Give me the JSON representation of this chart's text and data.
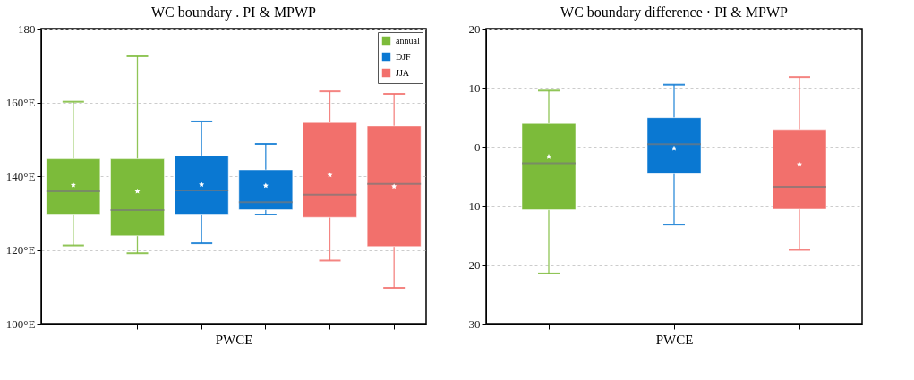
{
  "chart_data": [
    {
      "type": "box",
      "title": "WC boundary . PI & MPWP",
      "xlabel": "PWCE",
      "categories": [
        null,
        null,
        null,
        null,
        null,
        null
      ],
      "ylim": [
        100,
        180
      ],
      "yticks": [
        {
          "value": 100,
          "label": "100°E"
        },
        {
          "value": 120,
          "label": "120°E"
        },
        {
          "value": 140,
          "label": "140°E"
        },
        {
          "value": 160,
          "label": "160°E"
        },
        180
      ],
      "grid": "y",
      "legend": "top right",
      "tick_labels": "y",
      "marker": "star",
      "series": [
        {
          "name": "annual",
          "color": "#7cbb3a",
          "boxes": [
            {
              "low": 121.2,
              "q1": 129.7,
              "median": 135.9,
              "q3": 144.7,
              "high": 160.2,
              "mean": 137.6
            },
            {
              "low": 119.1,
              "q1": 123.8,
              "median": 130.8,
              "q3": 144.7,
              "high": 172.5,
              "mean": 135.9
            },
            null,
            null,
            null,
            null
          ]
        },
        {
          "name": "DJF",
          "color": "#0a78d2",
          "boxes": [
            null,
            null,
            {
              "low": 121.8,
              "q1": 129.7,
              "median": 136.1,
              "q3": 145.5,
              "high": 154.8,
              "mean": 137.7
            },
            {
              "low": 129.6,
              "q1": 130.9,
              "median": 132.9,
              "q3": 141.7,
              "high": 148.7,
              "mean": 137.4
            },
            null,
            null
          ]
        },
        {
          "name": "JJA",
          "color": "#f2706c",
          "boxes": [
            null,
            null,
            null,
            null,
            {
              "low": 117.1,
              "q1": 128.8,
              "median": 135.0,
              "q3": 154.5,
              "high": 163.0,
              "mean": 140.3
            },
            {
              "low": 109.7,
              "q1": 120.9,
              "median": 137.9,
              "q3": 153.6,
              "high": 162.3,
              "mean": 137.2
            }
          ]
        }
      ]
    },
    {
      "type": "box",
      "title": "WC boundary difference · PI & MPWP",
      "xlabel": "PWCE",
      "categories": [
        null,
        null,
        null
      ],
      "ylim": [
        -30,
        20
      ],
      "yticks": [
        -30,
        -20,
        -10,
        0,
        10,
        20
      ],
      "grid": "y",
      "tick_labels": "y",
      "marker": "star",
      "series": [
        {
          "color": "#7cbb3a",
          "boxes": [
            {
              "low": -21.5,
              "q1": -10.7,
              "median": -2.8,
              "q3": 3.9,
              "high": 9.5,
              "mean": -1.7
            },
            null,
            null
          ]
        },
        {
          "color": "#0a78d2",
          "boxes": [
            null,
            {
              "low": -13.2,
              "q1": -4.6,
              "median": 0.4,
              "q3": 4.9,
              "high": 10.5,
              "mean": -0.3
            },
            null
          ]
        },
        {
          "color": "#f2706c",
          "boxes": [
            null,
            null,
            {
              "low": -17.5,
              "q1": -10.6,
              "median": -6.8,
              "q3": 2.9,
              "high": 11.8,
              "mean": -3.0
            }
          ]
        }
      ]
    }
  ]
}
